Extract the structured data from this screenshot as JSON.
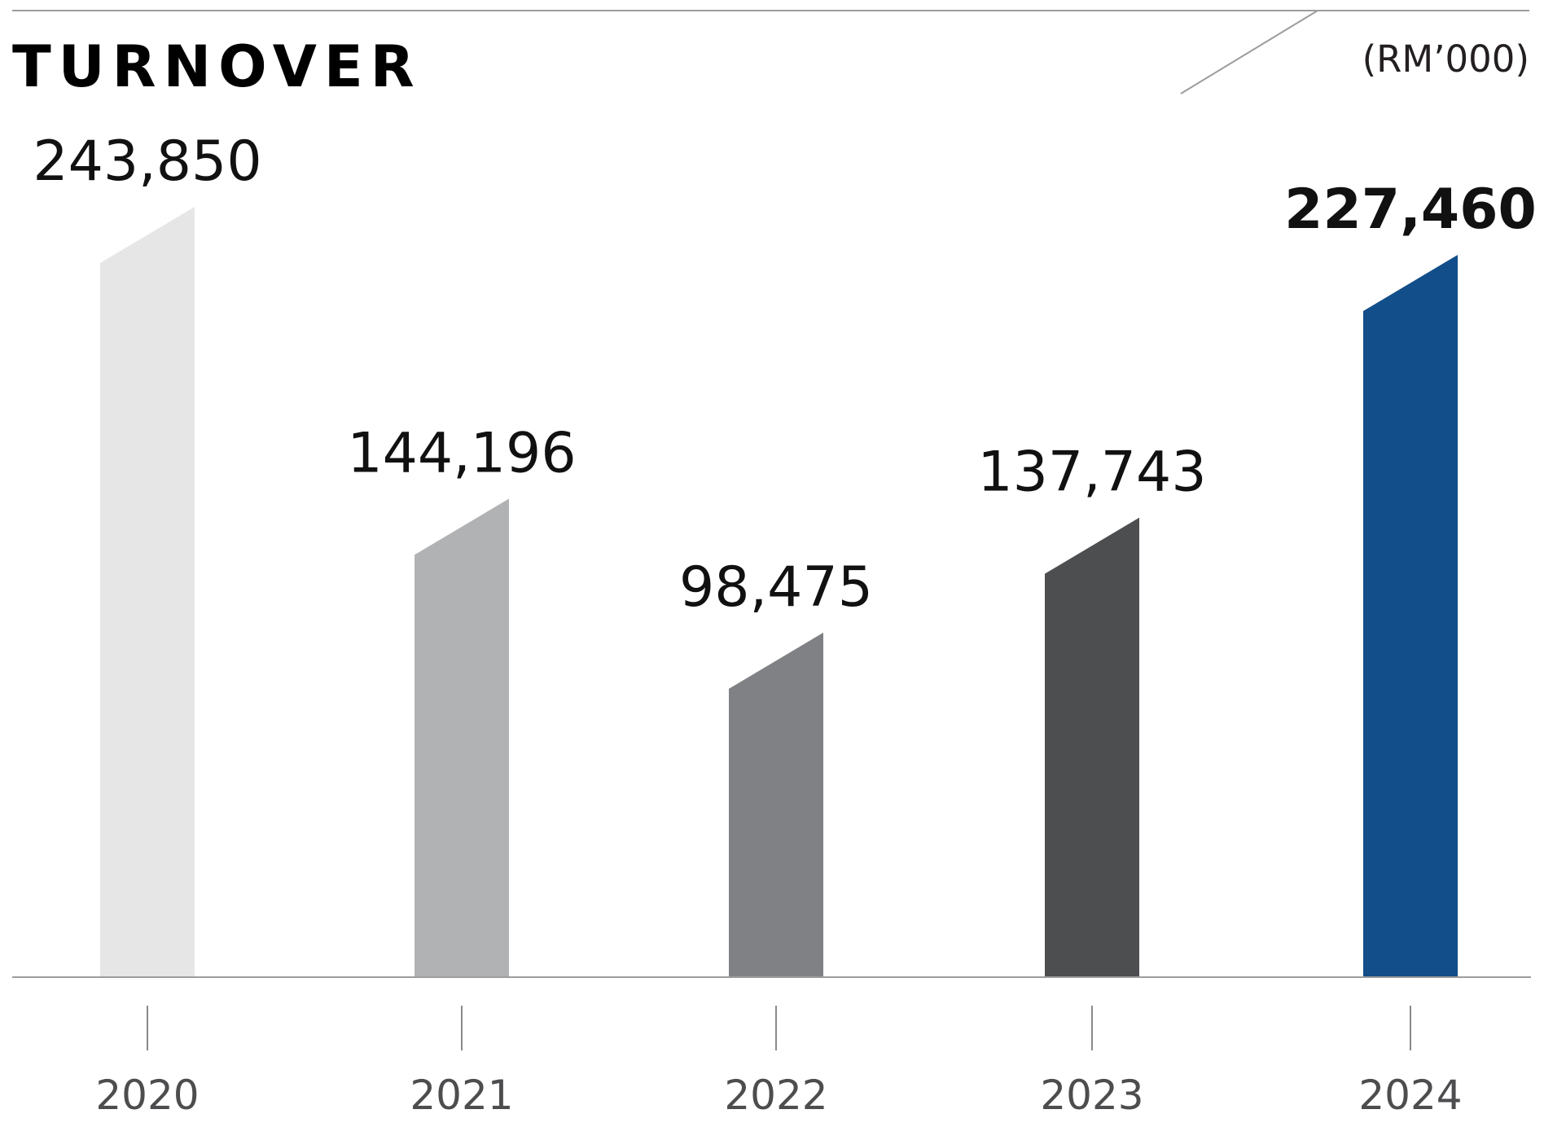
{
  "chart_data": {
    "type": "bar",
    "title": "TURNOVER",
    "unit": "(RM’000)",
    "categories": [
      "2020",
      "2021",
      "2022",
      "2023",
      "2024"
    ],
    "values": [
      243850,
      144196,
      98475,
      137743,
      227460
    ],
    "value_labels": [
      "243,850",
      "144,196",
      "98,475",
      "137,743",
      "227,460"
    ],
    "highlight_index": 4,
    "ylim": [
      0,
      250000
    ],
    "grid": false,
    "legend": "none"
  },
  "colors": {
    "bars": [
      "#e6e6e6",
      "#b1b2b4",
      "#808184",
      "#4d4e50",
      "#124e8a"
    ],
    "rule": "#9d9d9d",
    "tick": "#8a8a8a"
  }
}
